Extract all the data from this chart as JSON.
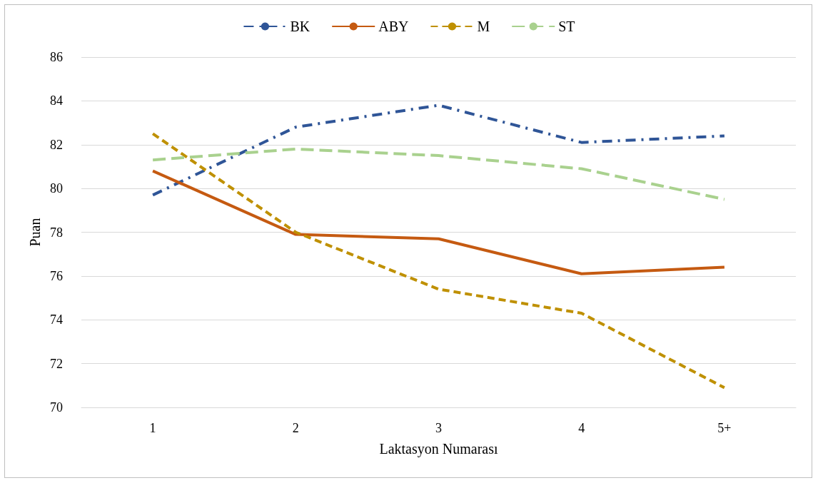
{
  "chart_data": {
    "type": "line",
    "xlabel": "Laktasyon Numarası",
    "ylabel": "Puan",
    "categories": [
      "1",
      "2",
      "3",
      "4",
      "5+"
    ],
    "series": [
      {
        "name": "BK",
        "color": "#2f5597",
        "line_style": "dashdot",
        "values": [
          79.7,
          82.8,
          83.8,
          82.1,
          82.4
        ]
      },
      {
        "name": "ABY",
        "color": "#c55a11",
        "line_style": "solid",
        "values": [
          80.8,
          77.9,
          77.7,
          76.1,
          76.4
        ]
      },
      {
        "name": "M",
        "color": "#bf9000",
        "line_style": "dashed",
        "values": [
          82.5,
          78.0,
          75.4,
          74.3,
          70.9
        ]
      },
      {
        "name": "ST",
        "color": "#a9d18e",
        "line_style": "longdash",
        "values": [
          81.3,
          81.8,
          81.5,
          80.9,
          79.5
        ]
      }
    ],
    "ylim": [
      70,
      86
    ],
    "yticks": [
      70,
      72,
      74,
      76,
      78,
      80,
      82,
      84,
      86
    ],
    "grid": "y",
    "legend": "top",
    "marker": "none"
  }
}
